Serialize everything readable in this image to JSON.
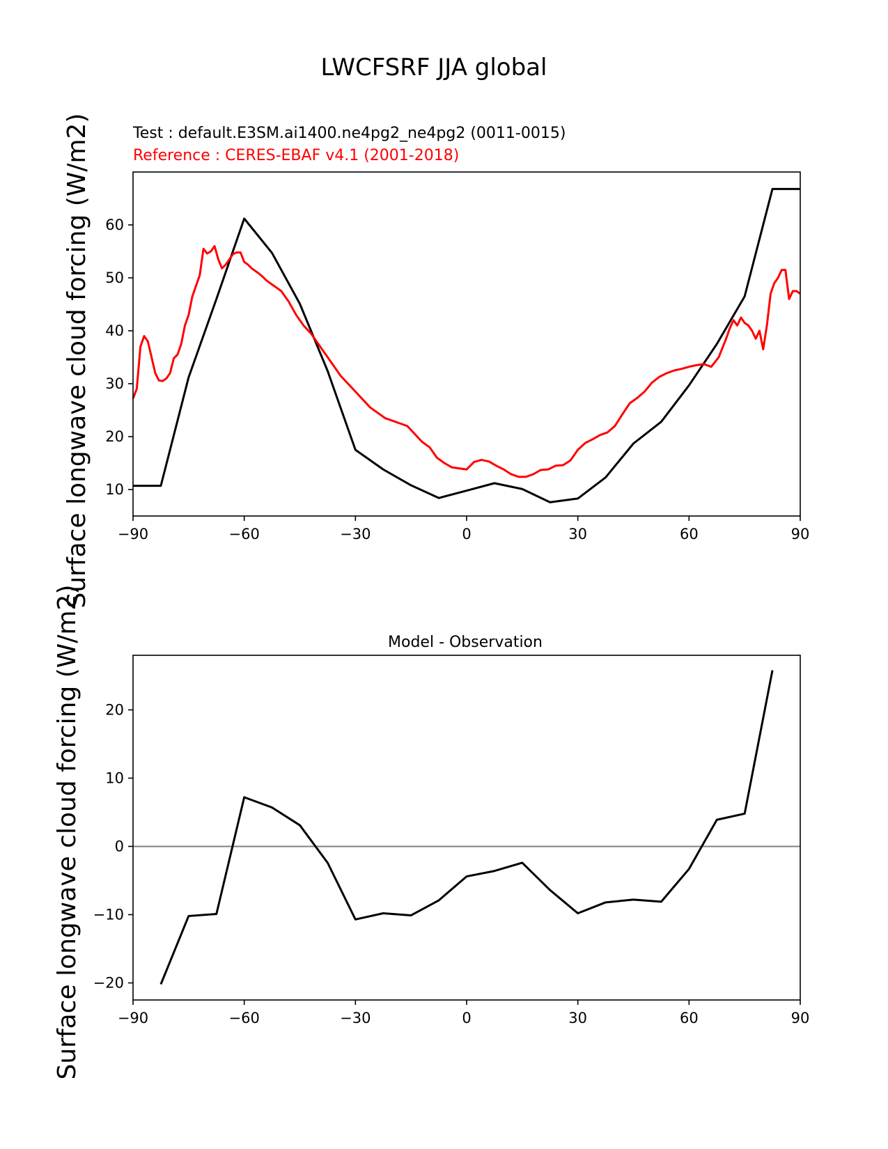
{
  "figure": {
    "title": "LWCFSRF JJA global"
  },
  "colors": {
    "test": "#000000",
    "reference": "#ff0000",
    "zero_line": "#808080"
  },
  "chart_data": [
    {
      "type": "line",
      "subtitle_test": "Test : default.E3SM.ai1400.ne4pg2_ne4pg2 (0011-0015)",
      "subtitle_reference": "Reference : CERES-EBAF v4.1 (2001-2018)",
      "xlabel": "",
      "ylabel": "Surface longwave cloud forcing (W/m2)",
      "xlim": [
        -90,
        90
      ],
      "ylim": [
        5,
        70
      ],
      "xticks": [
        -90,
        -60,
        -30,
        0,
        30,
        60,
        90
      ],
      "yticks": [
        10,
        20,
        30,
        40,
        50,
        60
      ],
      "grid": false,
      "series": [
        {
          "role": "test",
          "x": [
            -90,
            -82.5,
            -75,
            -67.5,
            -60,
            -52.5,
            -45,
            -37.5,
            -30,
            -22.5,
            -15,
            -7.5,
            0,
            7.5,
            15,
            22.5,
            30,
            37.5,
            45,
            52.5,
            60,
            67.5,
            75,
            82.5,
            90
          ],
          "y": [
            10.7,
            10.7,
            31.2,
            46.0,
            61.2,
            54.7,
            45.1,
            32.4,
            17.5,
            13.8,
            10.8,
            8.4,
            9.8,
            11.2,
            10.1,
            7.6,
            8.3,
            12.3,
            18.7,
            22.8,
            29.7,
            37.5,
            46.5,
            66.8,
            66.8
          ]
        },
        {
          "role": "reference",
          "x": [
            -90,
            -89,
            -88,
            -87,
            -86,
            -85,
            -84,
            -83,
            -82,
            -81,
            -80,
            -79,
            -78,
            -77,
            -76,
            -75,
            -74,
            -73,
            -72,
            -71,
            -70,
            -69,
            -68,
            -67,
            -66,
            -65,
            -64,
            -63,
            -62,
            -61,
            -60,
            -59,
            -58,
            -57,
            -56,
            -55,
            -54,
            -53,
            -52,
            -51,
            -50,
            -48,
            -46,
            -44,
            -42,
            -40,
            -38,
            -36,
            -34,
            -32,
            -30,
            -28,
            -26,
            -24,
            -22,
            -20,
            -18,
            -16,
            -14,
            -12,
            -10,
            -8,
            -6,
            -4,
            -2,
            0,
            2,
            4,
            6,
            8,
            10,
            12,
            14,
            16,
            18,
            20,
            22,
            24,
            26,
            28,
            30,
            32,
            34,
            36,
            38,
            40,
            42,
            44,
            46,
            48,
            50,
            52,
            54,
            56,
            58,
            60,
            62,
            64,
            66,
            68,
            70,
            71,
            72,
            73,
            74,
            75,
            76,
            77,
            78,
            79,
            80,
            81,
            82,
            83,
            84,
            85,
            86,
            87,
            88,
            89,
            90
          ],
          "y": [
            27.2,
            29.0,
            37.0,
            39.0,
            38.0,
            35.0,
            32.0,
            30.6,
            30.5,
            31.0,
            32.0,
            34.8,
            35.5,
            37.5,
            41.0,
            43.0,
            46.5,
            48.5,
            50.5,
            55.5,
            54.6,
            55.0,
            56.0,
            53.5,
            51.8,
            52.5,
            53.5,
            54.5,
            54.8,
            54.8,
            53.0,
            52.5,
            51.8,
            51.3,
            50.8,
            50.2,
            49.5,
            49.0,
            48.5,
            48.0,
            47.5,
            45.5,
            43.0,
            41.0,
            39.5,
            37.5,
            35.5,
            33.5,
            31.5,
            30.0,
            28.5,
            27.0,
            25.5,
            24.5,
            23.5,
            23.0,
            22.5,
            22.0,
            20.5,
            19.0,
            18.0,
            16.0,
            15.0,
            14.2,
            14.0,
            13.8,
            15.2,
            15.6,
            15.3,
            14.5,
            13.8,
            12.9,
            12.4,
            12.4,
            12.9,
            13.7,
            13.8,
            14.5,
            14.6,
            15.5,
            17.5,
            18.8,
            19.5,
            20.3,
            20.8,
            22.0,
            24.2,
            26.3,
            27.3,
            28.5,
            30.2,
            31.3,
            32.0,
            32.5,
            32.8,
            33.2,
            33.5,
            33.7,
            33.2,
            35.0,
            38.5,
            40.5,
            42.0,
            41.0,
            42.5,
            41.5,
            41.0,
            40.0,
            38.5,
            40.0,
            36.5,
            41.0,
            47.0,
            49.0,
            50.0,
            51.5,
            51.5,
            46.0,
            47.5,
            47.5,
            47.0
          ]
        }
      ]
    },
    {
      "type": "line",
      "title": "Model - Observation",
      "xlabel": "",
      "ylabel": "Surface longwave cloud forcing (W/m2)",
      "xlim": [
        -90,
        90
      ],
      "ylim": [
        -22.5,
        28
      ],
      "xticks": [
        -90,
        -60,
        -30,
        0,
        30,
        60,
        90
      ],
      "yticks": [
        -20,
        -10,
        0,
        10,
        20
      ],
      "grid": false,
      "zero_line": 0,
      "series": [
        {
          "role": "test",
          "x": [
            -82.5,
            -75,
            -67.5,
            -60,
            -52.5,
            -45,
            -37.5,
            -30,
            -22.5,
            -15,
            -7.5,
            0,
            7.5,
            15,
            22.5,
            30,
            37.5,
            45,
            52.5,
            60,
            67.5,
            75,
            82.5
          ],
          "y": [
            -20.2,
            -10.2,
            -9.9,
            7.2,
            5.7,
            3.1,
            -2.4,
            -10.7,
            -9.8,
            -10.1,
            -7.9,
            -4.4,
            -3.6,
            -2.4,
            -6.4,
            -9.8,
            -8.2,
            -7.8,
            -8.1,
            -3.3,
            3.9,
            4.8,
            25.8
          ]
        }
      ]
    }
  ]
}
